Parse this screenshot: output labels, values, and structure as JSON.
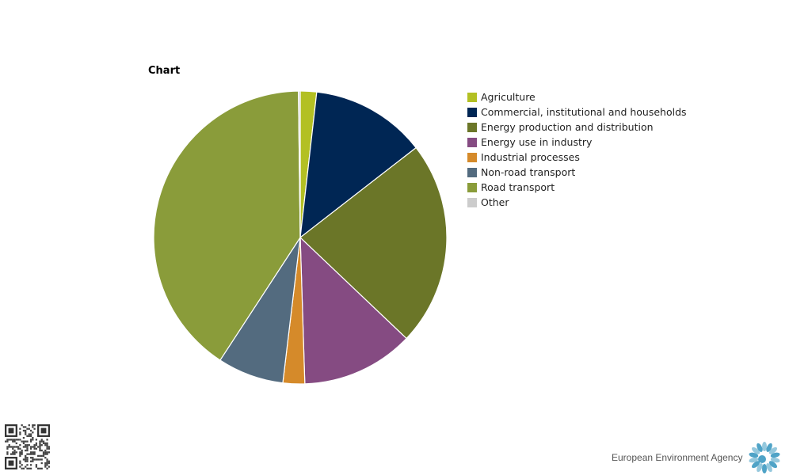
{
  "chart_data": {
    "type": "pie",
    "title": "Chart",
    "legend_position": "right",
    "slices": [
      {
        "label": "Agriculture",
        "value": 1.8,
        "color": "#b3c023"
      },
      {
        "label": "Commercial, institutional and households",
        "value": 12.7,
        "color": "#002654"
      },
      {
        "label": "Energy production and distribution",
        "value": 22.6,
        "color": "#6b7628"
      },
      {
        "label": "Energy use in industry",
        "value": 12.4,
        "color": "#854b82"
      },
      {
        "label": "Industrial processes",
        "value": 2.4,
        "color": "#d58a2a"
      },
      {
        "label": "Non-road transport",
        "value": 7.3,
        "color": "#536b7f"
      },
      {
        "label": "Road transport",
        "value": 40.6,
        "color": "#8a9c3a"
      },
      {
        "label": "Other",
        "value": 0.2,
        "color": "#cccccc"
      }
    ]
  },
  "branding": {
    "organization": "European Environment Agency",
    "logo_color": "#4fa3c7"
  }
}
